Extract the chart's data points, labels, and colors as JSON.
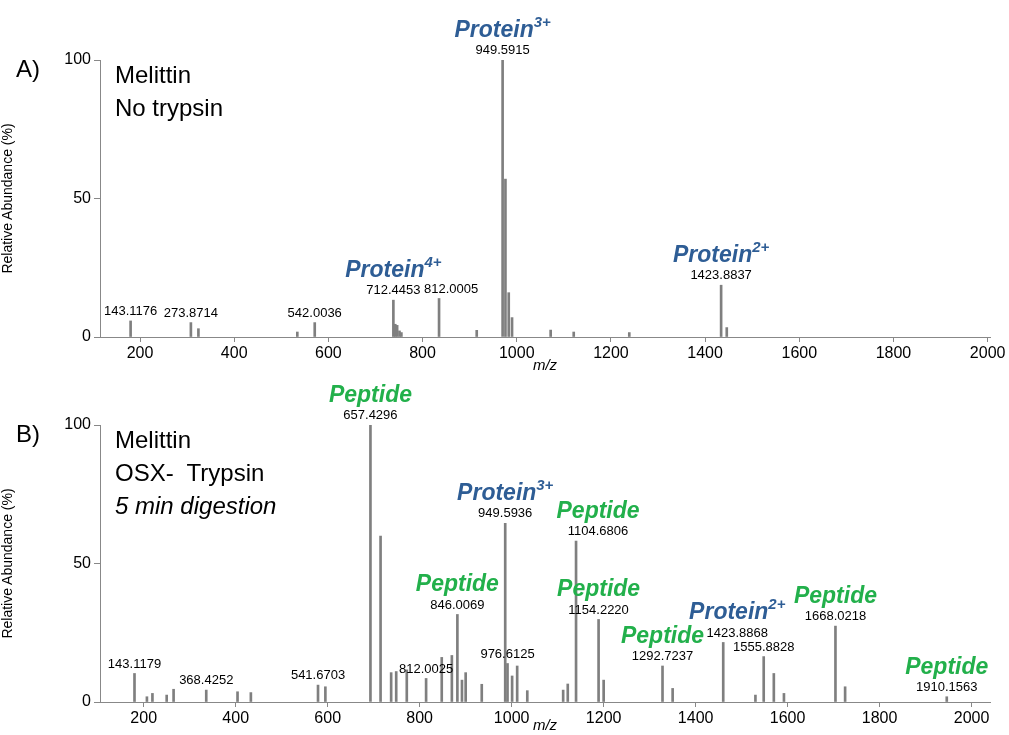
{
  "chart_data": [
    {
      "type": "bar",
      "xlabel": "m/z",
      "ylabel": "Relative Abundance (%)",
      "xlim": [
        115,
        2005
      ],
      "ylim": [
        0,
        100
      ],
      "xticks": [
        200,
        400,
        600,
        800,
        1000,
        1200,
        1400,
        1600,
        1800,
        2000
      ],
      "yticks": [
        0,
        50,
        100
      ],
      "x": [
        180,
        308,
        324,
        534,
        571,
        738,
        742,
        746,
        751,
        755,
        835,
        915,
        970,
        976,
        983,
        990,
        1072,
        1121,
        1239,
        1434,
        1446
      ],
      "series": [
        {
          "color": "#7f7f7f",
          "values": [
            5.8,
            5.2,
            3,
            1.8,
            5.2,
            13.3,
            4.6,
            4.2,
            2.2,
            1.6,
            13.9,
            2.4,
            100,
            57,
            16,
            7,
            2.5,
            1.8,
            1.6,
            18.7,
            3.4
          ]
        }
      ],
      "annotations": [
        "A)",
        "Melittin",
        "No trypsin",
        {
          "text": "143.1176",
          "x": 180,
          "y": 5.8
        },
        {
          "text": "273.8714",
          "x": 308,
          "y": 5.2
        },
        {
          "text": "542.0036",
          "x": 571,
          "y": 5.2
        },
        {
          "text": "712.4453",
          "x": 738,
          "y": 13.3
        },
        {
          "text": "Protein$^{4+}$",
          "x": 738,
          "y": 13.3
        },
        {
          "text": "812.0005",
          "x": 835,
          "y": 13.9
        },
        {
          "text": "949.5915",
          "x": 970,
          "y": 100
        },
        {
          "text": "Protein$^{3+}$",
          "x": 970,
          "y": 100
        },
        {
          "text": "1423.8837",
          "x": 1434,
          "y": 18.7
        },
        {
          "text": "Protein$^{2+}$",
          "x": 1434,
          "y": 18.7
        }
      ]
    },
    {
      "type": "bar",
      "xlabel": "m/z",
      "ylabel": "Relative Abundance (%)",
      "xlim": [
        105,
        2040
      ],
      "ylim": [
        0,
        100
      ],
      "xticks": [
        200,
        400,
        600,
        800,
        1000,
        1200,
        1400,
        1600,
        1800,
        2000
      ],
      "yticks": [
        0,
        50,
        100
      ],
      "x": [
        180,
        207,
        219,
        250,
        265,
        336,
        404,
        433,
        579,
        595,
        693,
        715,
        738,
        749,
        772,
        814,
        848,
        870,
        882,
        892,
        900,
        935,
        986,
        991,
        1001,
        1012,
        1034,
        1112,
        1122,
        1140,
        1189,
        1200,
        1328,
        1350,
        1460,
        1530,
        1548,
        1570,
        1592,
        1704,
        1725,
        1946
      ],
      "series": [
        {
          "color": "#7f7f7f",
          "values": [
            10.3,
            1.9,
            3.1,
            2.5,
            4.6,
            4.3,
            3.7,
            3.4,
            6.1,
            5.5,
            100,
            59.9,
            10.6,
            11,
            11.6,
            8.5,
            16.1,
            16.8,
            31.6,
            7.9,
            10.6,
            6.4,
            64.5,
            13.9,
            9.4,
            13,
            4.1,
            4.3,
            6.5,
            58.1,
            29.8,
            7.9,
            13,
            4.9,
            21.5,
            2.5,
            16.4,
            10.3,
            3.1,
            27.4,
            5.5,
            1.9
          ]
        }
      ],
      "annotations": [
        "B)",
        "Melittin",
        "OSX-  Trypsin",
        "5 min digestion",
        {
          "text": "143.1179",
          "x": 180,
          "y": 10.3
        },
        {
          "text": "368.4252",
          "x": 336,
          "y": 4.3
        },
        {
          "text": "541.6703",
          "x": 579,
          "y": 6.1
        },
        {
          "text": "657.4296",
          "x": 693,
          "y": 100
        },
        {
          "text": "Peptide",
          "x": 693,
          "y": 100
        },
        {
          "text": "812.0025",
          "x": 814,
          "y": 8.5
        },
        {
          "text": "846.0069",
          "x": 882,
          "y": 31.6
        },
        {
          "text": "Peptide",
          "x": 882,
          "y": 31.6
        },
        {
          "text": "949.5936",
          "x": 986,
          "y": 64.5
        },
        {
          "text": "Protein$^{3+}$",
          "x": 986,
          "y": 64.5
        },
        {
          "text": "976.6125",
          "x": 991,
          "y": 13.9
        },
        {
          "text": "1104.6806",
          "x": 1140,
          "y": 58.1
        },
        {
          "text": "Peptide",
          "x": 1140,
          "y": 58.1
        },
        {
          "text": "1154.2220",
          "x": 1189,
          "y": 29.8
        },
        {
          "text": "Peptide",
          "x": 1189,
          "y": 29.8
        },
        {
          "text": "1292.7237",
          "x": 1328,
          "y": 13
        },
        {
          "text": "Peptide",
          "x": 1328,
          "y": 13
        },
        {
          "text": "1423.8868",
          "x": 1460,
          "y": 21.5
        },
        {
          "text": "Protein$^{2+}$",
          "x": 1460,
          "y": 21.5
        },
        {
          "text": "1555.8828",
          "x": 1548,
          "y": 16.4
        },
        {
          "text": "1668.0218",
          "x": 1704,
          "y": 27.4
        },
        {
          "text": "Peptide",
          "x": 1704,
          "y": 27.4
        },
        {
          "text": "1910.1563",
          "x": 1946,
          "y": 1.9
        },
        {
          "text": "Peptide",
          "x": 1946,
          "y": 1.9
        }
      ]
    }
  ]
}
